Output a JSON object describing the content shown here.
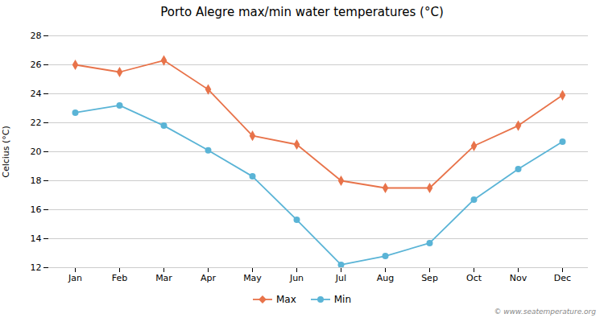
{
  "chart_data": {
    "type": "line",
    "title": "Porto Alegre max/min water temperatures (°C)",
    "ylabel": "Celcius (°C)",
    "annotations": [
      "© www.seatemperature.org"
    ],
    "categories": [
      "Jan",
      "Feb",
      "Mar",
      "Apr",
      "May",
      "Jun",
      "Jul",
      "Aug",
      "Sep",
      "Oct",
      "Nov",
      "Dec"
    ],
    "series": [
      {
        "name": "Max",
        "color": "#e8734a",
        "marker": "diamond",
        "values": [
          26.0,
          25.5,
          26.3,
          24.3,
          21.1,
          20.5,
          18.0,
          17.5,
          17.5,
          20.4,
          21.8,
          23.9
        ]
      },
      {
        "name": "Min",
        "color": "#5ab4d6",
        "marker": "circle",
        "values": [
          22.7,
          23.2,
          21.8,
          20.1,
          18.3,
          15.3,
          12.2,
          12.8,
          13.7,
          16.7,
          18.8,
          20.7
        ]
      }
    ],
    "ylim": [
      12,
      28
    ],
    "yticks": [
      12,
      14,
      16,
      18,
      20,
      22,
      24,
      26,
      28
    ],
    "grid": true,
    "legend": "bottom"
  }
}
